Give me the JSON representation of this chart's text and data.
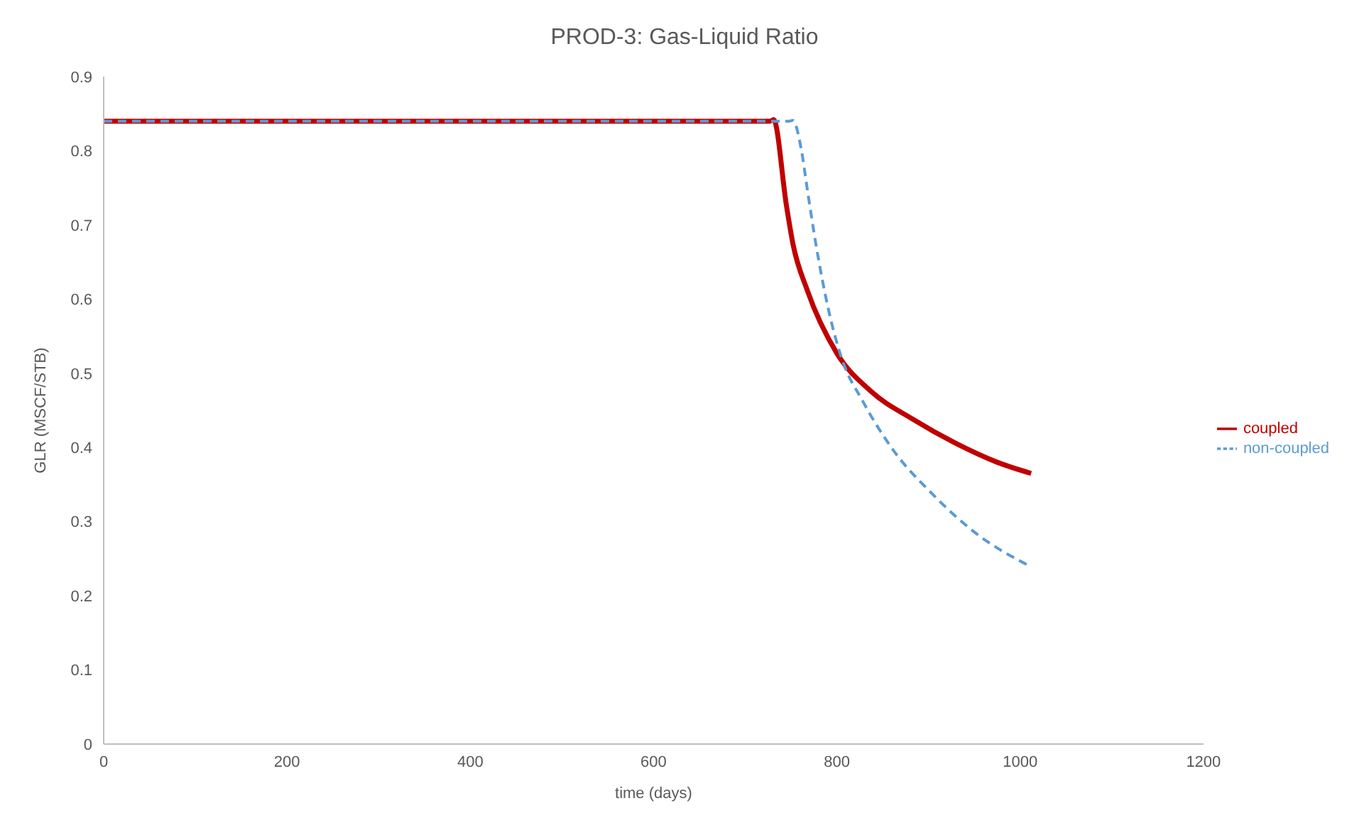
{
  "chart_data": {
    "type": "line",
    "title": "PROD-3: Gas-Liquid Ratio",
    "xlabel": "time (days)",
    "ylabel": "GLR (MSCF/STB)",
    "xlim": [
      0,
      1200
    ],
    "xticks": [
      0,
      200,
      400,
      600,
      800,
      1000,
      1200
    ],
    "ylim": [
      0,
      0.9
    ],
    "yticks": [
      0,
      0.1,
      0.2,
      0.3,
      0.4,
      0.5,
      0.6,
      0.7,
      0.8,
      0.9
    ],
    "grid": false,
    "legend": "right",
    "marker": "none",
    "series": [
      {
        "name": "coupled",
        "color": "#c00000",
        "line_style": "solid",
        "x": [
          0,
          727,
          731,
          745,
          752,
          768,
          800,
          837,
          883,
          929,
          975,
          1012
        ],
        "values": [
          0.84,
          0.84,
          0.842,
          0.726,
          0.675,
          0.611,
          0.527,
          0.476,
          0.438,
          0.406,
          0.38,
          0.365
        ]
      },
      {
        "name": "non-coupled",
        "color": "#5b9bd5",
        "line_style": "dashed",
        "x": [
          0,
          748,
          752,
          761,
          768,
          777,
          791,
          805,
          828,
          860,
          906,
          952,
          1012
        ],
        "values": [
          0.84,
          0.84,
          0.841,
          0.803,
          0.746,
          0.675,
          0.585,
          0.521,
          0.463,
          0.399,
          0.335,
          0.284,
          0.239
        ]
      }
    ]
  }
}
